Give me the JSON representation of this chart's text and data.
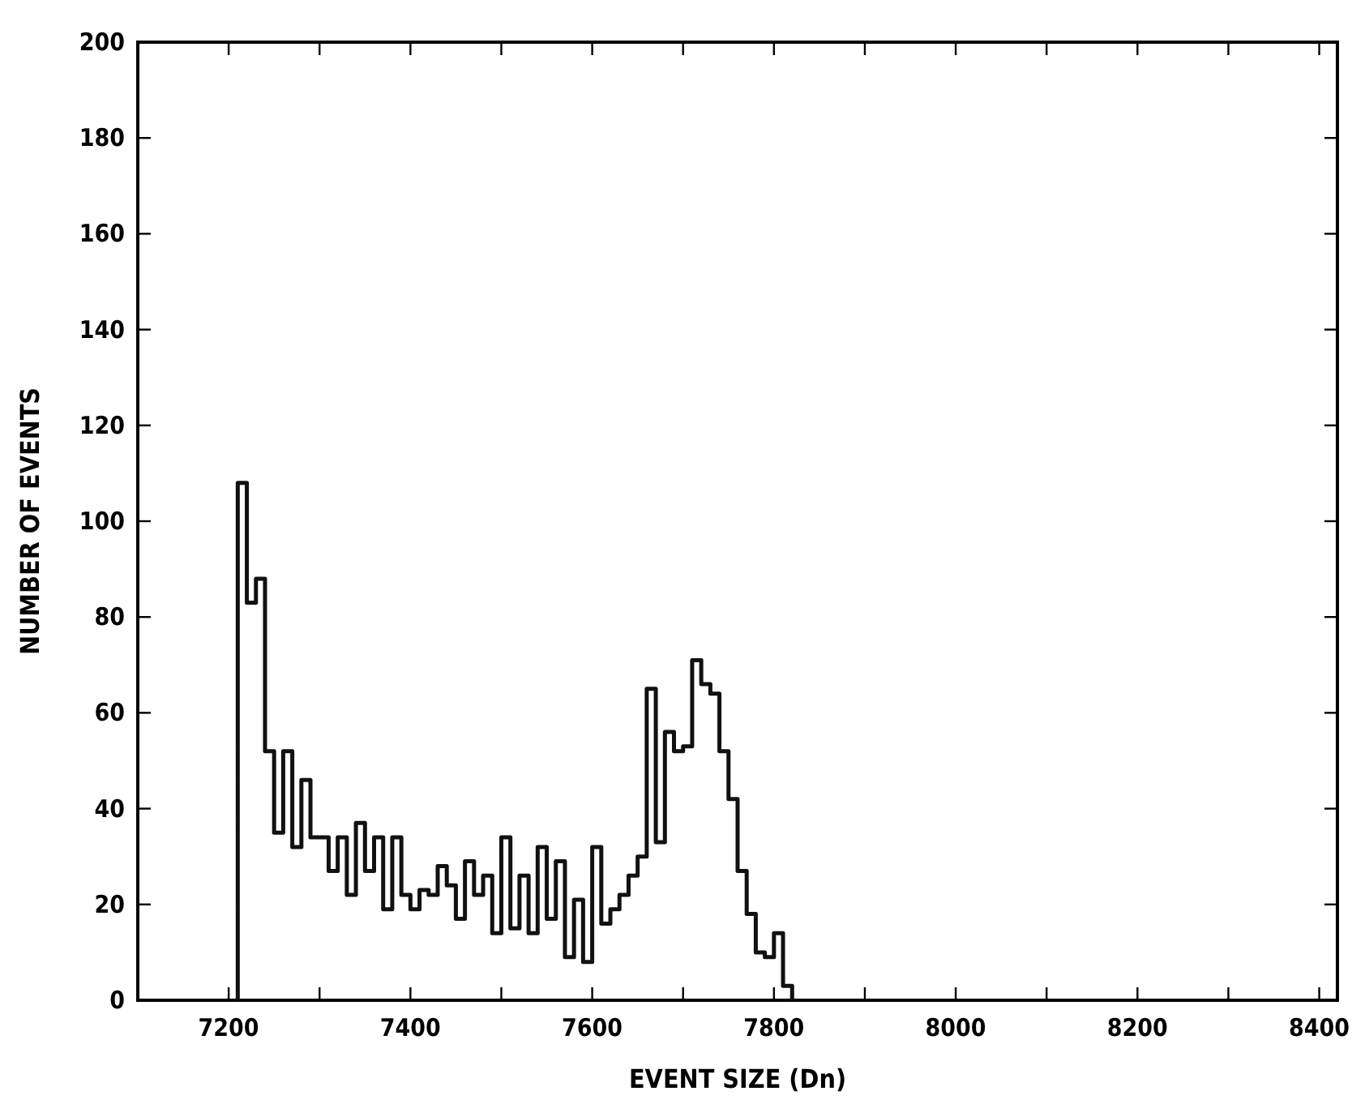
{
  "chart_data": {
    "type": "histogram",
    "xlabel": "EVENT SIZE (Dn)",
    "ylabel": "NUMBER OF EVENTS",
    "color": "#111111",
    "bins": [
      7210,
      7220,
      7230,
      7240,
      7250,
      7260,
      7270,
      7280,
      7290,
      7300,
      7310,
      7320,
      7330,
      7340,
      7350,
      7360,
      7370,
      7380,
      7390,
      7400,
      7410,
      7420,
      7430,
      7440,
      7450,
      7460,
      7470,
      7480,
      7490,
      7500,
      7510,
      7520,
      7530,
      7540,
      7550,
      7560,
      7570,
      7580,
      7590,
      7600,
      7610,
      7620,
      7630,
      7640,
      7650,
      7660,
      7670,
      7680,
      7690,
      7700,
      7710,
      7720,
      7730,
      7740,
      7750,
      7760,
      7770,
      7780,
      7790,
      7800,
      7810,
      7820
    ],
    "values": [
      108,
      83,
      88,
      52,
      35,
      52,
      32,
      46,
      34,
      34,
      27,
      34,
      22,
      37,
      27,
      34,
      19,
      34,
      22,
      19,
      23,
      22,
      28,
      24,
      17,
      29,
      22,
      26,
      14,
      34,
      15,
      26,
      14,
      32,
      17,
      29,
      9,
      21,
      8,
      32,
      16,
      19,
      22,
      26,
      30,
      65,
      33,
      56,
      52,
      53,
      71,
      66,
      64,
      52,
      42,
      27,
      18,
      10,
      9,
      14,
      3
    ],
    "xlim": [
      7100,
      8420
    ],
    "xticks": [
      7200,
      {
        "value": 7300,
        "label": null
      },
      7400,
      {
        "value": 7500,
        "label": null
      },
      7600,
      {
        "value": 7700,
        "label": null
      },
      7800,
      {
        "value": 7900,
        "label": null
      },
      8000,
      {
        "value": 8100,
        "label": null
      },
      8200,
      {
        "value": 8300,
        "label": null
      },
      8400
    ],
    "ylim": [
      0,
      200
    ],
    "yticks": [
      0,
      20,
      40,
      60,
      80,
      100,
      120,
      140,
      160,
      180,
      200
    ]
  }
}
